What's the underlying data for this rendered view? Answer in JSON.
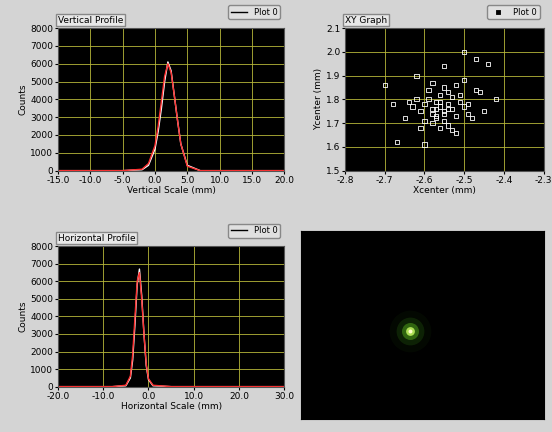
{
  "chart_data": [
    {
      "type": "line",
      "title": "Vertical Profile",
      "x_label": "Vertical Scale (mm)",
      "y_label": "Counts",
      "legend": "upper right",
      "grid": true,
      "xlim": [
        -15,
        20
      ],
      "xticks": [
        {
          "value": -15,
          "label": "-15.0"
        },
        {
          "value": -10,
          "label": "-10.0"
        },
        {
          "value": -5,
          "label": "-5.0"
        },
        {
          "value": 0,
          "label": "0.0"
        },
        {
          "value": 5,
          "label": "5.0"
        },
        {
          "value": 10,
          "label": "10.0"
        },
        {
          "value": 15,
          "label": "15.0"
        },
        {
          "value": 20,
          "label": "20.0"
        }
      ],
      "ylim": [
        0,
        8000
      ],
      "yticks": [
        0,
        1000,
        2000,
        3000,
        4000,
        5000,
        6000,
        7000,
        8000
      ],
      "x": [
        -15,
        -5,
        -2,
        -1,
        0,
        0.5,
        1,
        1.5,
        2,
        2.5,
        3,
        3.5,
        4,
        5,
        7,
        20
      ],
      "series": [
        {
          "name": "Plot 0",
          "color": "#ffffff",
          "line_style": "solid",
          "values": [
            0,
            0,
            50,
            300,
            1200,
            2200,
            3500,
            5000,
            6100,
            5600,
            4200,
            2800,
            1500,
            300,
            0,
            0
          ]
        },
        {
          "color": "#ff3030",
          "line_style": "solid",
          "values": [
            0,
            0,
            80,
            400,
            1400,
            2500,
            3900,
            5300,
            6000,
            5500,
            4200,
            2800,
            1500,
            250,
            0,
            0
          ]
        }
      ]
    },
    {
      "type": "scatter",
      "title": "XY Graph",
      "x_label": "Xcenter (mm)",
      "y_label": "Ycenter (mm)",
      "legend": "upper right",
      "grid": true,
      "xlim": [
        -2.8,
        -2.3
      ],
      "xticks": [
        -2.8,
        -2.7,
        -2.6,
        -2.5,
        -2.4,
        -2.3
      ],
      "ylim": [
        1.5,
        2.1
      ],
      "yticks": [
        1.5,
        1.6,
        1.7,
        1.8,
        1.9,
        2.0,
        2.1
      ],
      "series": [
        {
          "name": "Plot 0",
          "color": "#ffffff",
          "marker": "square",
          "x": [
            -2.56,
            -2.55,
            -2.57,
            -2.54,
            -2.58,
            -2.53,
            -2.59,
            -2.52,
            -2.56,
            -2.55,
            -2.57,
            -2.54,
            -2.6,
            -2.51,
            -2.58,
            -2.53,
            -2.61,
            -2.5,
            -2.56,
            -2.55,
            -2.62,
            -2.49,
            -2.57,
            -2.54,
            -2.59,
            -2.52,
            -2.63,
            -2.48,
            -2.56,
            -2.55,
            -2.6,
            -2.51,
            -2.58,
            -2.53,
            -2.64,
            -2.47,
            -2.57,
            -2.54,
            -2.61,
            -2.5,
            -2.7,
            -2.67,
            -2.42,
            -2.44,
            -2.5,
            -2.47,
            -2.55,
            -2.68,
            -2.6,
            -2.45,
            -2.65,
            -2.46,
            -2.58,
            -2.52,
            -2.62,
            -2.49
          ],
          "values": [
            1.77,
            1.75,
            1.79,
            1.78,
            1.74,
            1.76,
            1.8,
            1.73,
            1.82,
            1.71,
            1.76,
            1.83,
            1.78,
            1.79,
            1.7,
            1.81,
            1.75,
            1.77,
            1.68,
            1.85,
            1.8,
            1.74,
            1.72,
            1.69,
            1.84,
            1.86,
            1.77,
            1.72,
            1.79,
            1.74,
            1.71,
            1.82,
            1.87,
            1.67,
            1.79,
            1.84,
            1.73,
            1.76,
            1.68,
            1.88,
            1.86,
            1.62,
            1.8,
            1.95,
            2.0,
            1.97,
            1.94,
            1.78,
            1.61,
            1.75,
            1.72,
            1.83,
            1.76,
            1.66,
            1.9,
            1.78
          ]
        }
      ]
    },
    {
      "type": "line",
      "title": "Horizontal Profile",
      "x_label": "Horizontal Scale (mm)",
      "y_label": "Counts",
      "legend": "upper right",
      "grid": true,
      "xlim": [
        -20,
        30
      ],
      "xticks": [
        {
          "value": -20,
          "label": "-20.0"
        },
        {
          "value": -10,
          "label": "-10.0"
        },
        {
          "value": 0,
          "label": "0.0"
        },
        {
          "value": 10,
          "label": "10.0"
        },
        {
          "value": 20,
          "label": "20.0"
        },
        {
          "value": 30,
          "label": "30.0"
        }
      ],
      "ylim": [
        0,
        8000
      ],
      "yticks": [
        0,
        1000,
        2000,
        3000,
        4000,
        5000,
        6000,
        7000,
        8000
      ],
      "x": [
        -20,
        -8,
        -5,
        -4,
        -3.5,
        -3,
        -2.5,
        -2,
        -1.5,
        -1,
        -0.5,
        0,
        1,
        5,
        30
      ],
      "series": [
        {
          "name": "Plot 0",
          "color": "#ffffff",
          "line_style": "solid",
          "values": [
            0,
            0,
            50,
            500,
            1500,
            3500,
            5800,
            6700,
            5200,
            3000,
            1200,
            400,
            50,
            0,
            0
          ]
        },
        {
          "color": "#ff3030",
          "line_style": "solid",
          "values": [
            0,
            0,
            80,
            600,
            1800,
            3900,
            6000,
            6500,
            5000,
            3000,
            1300,
            450,
            80,
            0,
            0
          ]
        }
      ]
    }
  ]
}
